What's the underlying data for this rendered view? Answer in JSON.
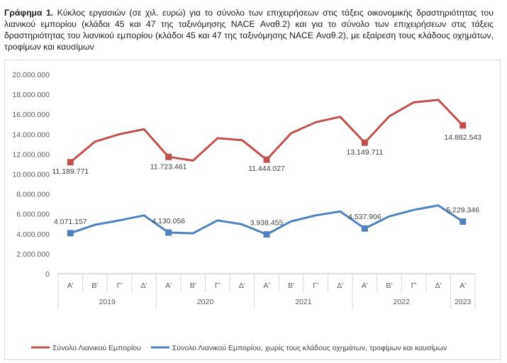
{
  "caption": {
    "prefix": "Γράφημα 1.",
    "text": " Κύκλος εργασιών (σε χιλ. ευρώ) για το σύνολο των επιχειρήσεων στις τάξεις οικονομικής δραστηριότητας του λιανικού εμπορίου (κλάδοι 45 και 47 της ταξινόμησης NACE Αναθ.2) και για το σύνολο των επιχειρήσεων στις τάξεις δραστηριότητας του λιανικού εμπορίου (κλάδοι 45 και 47 της ταξινόμησης NACE Αναθ.2), με εξαίρεση τους κλάδους οχημάτων, τροφίμων και καυσίμων"
  },
  "chart_data": {
    "type": "line",
    "ylim": [
      0,
      20000000
    ],
    "y_ticks": [
      "0",
      "2.000.000",
      "4.000.000",
      "6.000.000",
      "8.000.000",
      "10.000.000",
      "12.000.000",
      "14.000.000",
      "16.000.000",
      "18.000.000",
      "20.000.000"
    ],
    "grid": false,
    "legend_position": "bottom",
    "quarters": [
      "Α'",
      "Β'",
      "Γ'",
      "Δ'",
      "Α'",
      "Β'",
      "Γ'",
      "Δ'",
      "Α'",
      "Β'",
      "Γ'",
      "Δ'",
      "Α'",
      "Β'",
      "Γ'",
      "Δ'",
      "Α'"
    ],
    "years": [
      {
        "label": "2019",
        "count": 4
      },
      {
        "label": "2020",
        "count": 4
      },
      {
        "label": "2021",
        "count": 4
      },
      {
        "label": "2022",
        "count": 4
      },
      {
        "label": "2023",
        "count": 1
      }
    ],
    "series": [
      {
        "name": "Σύνολο Λιανικού Εμπορίου",
        "color": "#c0504d",
        "values": [
          11189771,
          13250000,
          14000000,
          14500000,
          11723461,
          11350000,
          13600000,
          13400000,
          11444027,
          14100000,
          15200000,
          15750000,
          13149711,
          15800000,
          17200000,
          17450000,
          14882543
        ],
        "labels": [
          {
            "index": 0,
            "text": "11.189.771"
          },
          {
            "index": 4,
            "text": "11.723.461"
          },
          {
            "index": 8,
            "text": "11.444.027"
          },
          {
            "index": 12,
            "text": "13.149.711"
          },
          {
            "index": 16,
            "text": "14.882.543"
          }
        ]
      },
      {
        "name": "Σύνολο Λιανικού Εμπορίου, χωρίς τους κλάδους οχημάτων, τροφίμων και καυσίμων",
        "color": "#4f81bd",
        "values": [
          4071157,
          4900000,
          5350000,
          5850000,
          4130056,
          4050000,
          5350000,
          4950000,
          3938455,
          5250000,
          5850000,
          6250000,
          4537906,
          5750000,
          6400000,
          6850000,
          5229346
        ],
        "labels": [
          {
            "index": 0,
            "text": "4.071.157"
          },
          {
            "index": 4,
            "text": "4.130.056"
          },
          {
            "index": 8,
            "text": "3.938.455"
          },
          {
            "index": 12,
            "text": "4.537.906"
          },
          {
            "index": 16,
            "text": "5.229.346"
          }
        ]
      }
    ]
  }
}
